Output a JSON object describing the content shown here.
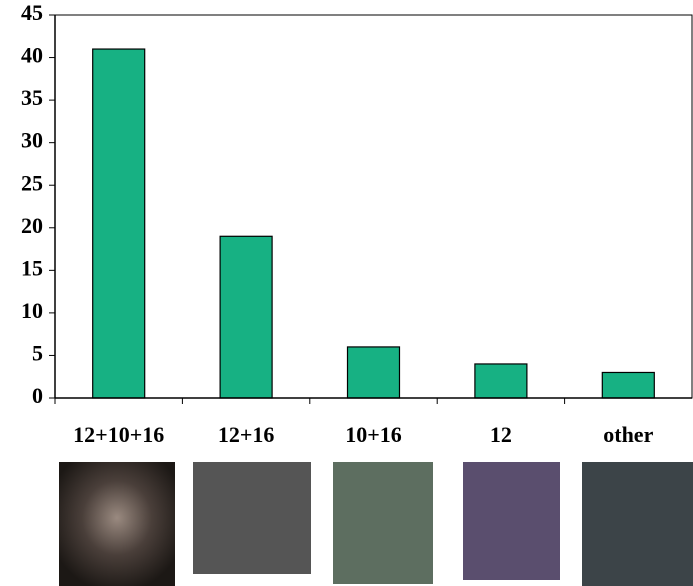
{
  "chart_data": {
    "type": "bar",
    "categories": [
      "12+10+16",
      "12+16",
      "10+16",
      "12",
      "other"
    ],
    "values": [
      41,
      19,
      6,
      4,
      3
    ],
    "color": "#17b183",
    "ylim": [
      0,
      45
    ],
    "yticks": [
      0,
      5,
      10,
      15,
      20,
      25,
      30,
      35,
      40,
      45
    ]
  }
}
